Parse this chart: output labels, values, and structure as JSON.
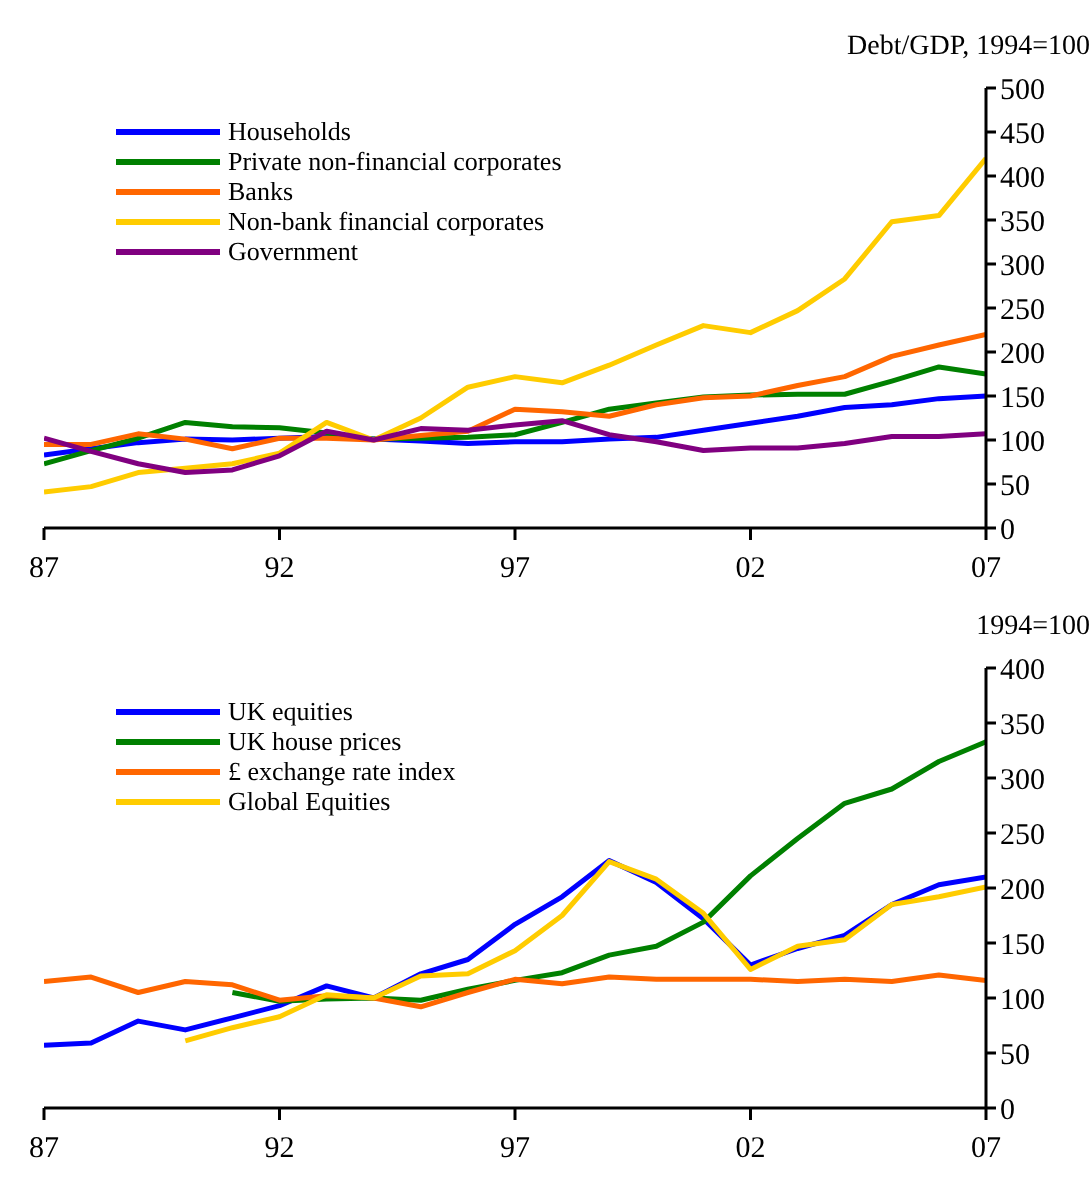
{
  "chart_data": [
    {
      "type": "line",
      "ylabel": "Debt/GDP, 1994=100",
      "x": [
        1987,
        1988,
        1989,
        1990,
        1991,
        1992,
        1993,
        1994,
        1995,
        1996,
        1997,
        1998,
        1999,
        2000,
        2001,
        2002,
        2003,
        2004,
        2005,
        2006,
        2007
      ],
      "series": [
        {
          "name": "Households",
          "color": "#0000ff",
          "values": [
            83,
            90,
            97,
            101,
            100,
            102,
            104,
            101,
            99,
            96,
            98,
            98,
            101,
            103,
            111,
            119,
            127,
            137,
            140,
            147,
            150
          ]
        },
        {
          "name": "Private non-financial corporates",
          "color": "#008000",
          "values": [
            73,
            88,
            102,
            120,
            115,
            114,
            108,
            101,
            102,
            103,
            106,
            120,
            135,
            142,
            149,
            151,
            152,
            152,
            167,
            183,
            175
          ]
        },
        {
          "name": "Banks",
          "color": "#ff6600",
          "values": [
            95,
            95,
            107,
            101,
            90,
            102,
            102,
            100,
            105,
            110,
            135,
            132,
            127,
            140,
            148,
            150,
            162,
            172,
            195,
            208,
            220
          ]
        },
        {
          "name": "Non-bank financial corporates",
          "color": "#ffcc00",
          "values": [
            41,
            47,
            63,
            68,
            73,
            85,
            120,
            100,
            125,
            160,
            172,
            165,
            185,
            208,
            230,
            222,
            247,
            283,
            348,
            355,
            420
          ]
        },
        {
          "name": "Government",
          "color": "#800080",
          "values": [
            102,
            87,
            73,
            63,
            66,
            82,
            110,
            100,
            113,
            111,
            117,
            122,
            106,
            98,
            88,
            91,
            91,
            96,
            104,
            104,
            107
          ]
        }
      ],
      "xlim": [
        1987,
        2007
      ],
      "xticks": [
        {
          "value": 1987,
          "label": "87"
        },
        {
          "value": 1992,
          "label": "92"
        },
        {
          "value": 1997,
          "label": "97"
        },
        {
          "value": 2002,
          "label": "02"
        },
        {
          "value": 2007,
          "label": "07"
        }
      ],
      "ylim": [
        0,
        500
      ],
      "yticks": [
        0,
        50,
        100,
        150,
        200,
        250,
        300,
        350,
        400,
        450,
        500
      ],
      "legend": "top left",
      "grid": false
    },
    {
      "type": "line",
      "ylabel": "1994=100",
      "x": [
        1987,
        1988,
        1989,
        1990,
        1991,
        1992,
        1993,
        1994,
        1995,
        1996,
        1997,
        1998,
        1999,
        2000,
        2001,
        2002,
        2003,
        2004,
        2005,
        2006,
        2007
      ],
      "series": [
        {
          "name": "UK equities",
          "color": "#0000ff",
          "values": [
            57,
            59,
            79,
            71,
            82,
            93,
            111,
            100,
            122,
            135,
            167,
            192,
            225,
            205,
            172,
            130,
            145,
            157,
            185,
            203,
            210
          ]
        },
        {
          "name": "UK house prices",
          "color": "#008000",
          "values": [
            null,
            null,
            null,
            null,
            105,
            97,
            99,
            100,
            98,
            108,
            116,
            123,
            139,
            147,
            169,
            211,
            245,
            277,
            290,
            315,
            333
          ]
        },
        {
          "name": "£ exchange rate index",
          "color": "#ff6600",
          "values": [
            115,
            119,
            105,
            115,
            112,
            98,
            102,
            100,
            92,
            105,
            117,
            113,
            119,
            117,
            117,
            117,
            115,
            117,
            115,
            121,
            116
          ]
        },
        {
          "name": "Global Equities",
          "color": "#ffcc00",
          "values": [
            null,
            null,
            null,
            61,
            73,
            83,
            103,
            100,
            120,
            122,
            143,
            175,
            224,
            208,
            177,
            126,
            147,
            153,
            185,
            192,
            201
          ]
        }
      ],
      "xlim": [
        1987,
        2007
      ],
      "xticks": [
        {
          "value": 1987,
          "label": "87"
        },
        {
          "value": 1992,
          "label": "92"
        },
        {
          "value": 1997,
          "label": "97"
        },
        {
          "value": 2002,
          "label": "02"
        },
        {
          "value": 2007,
          "label": "07"
        }
      ],
      "ylim": [
        0,
        400
      ],
      "yticks": [
        0,
        50,
        100,
        150,
        200,
        250,
        300,
        350,
        400
      ],
      "legend": "top left",
      "grid": false
    }
  ]
}
